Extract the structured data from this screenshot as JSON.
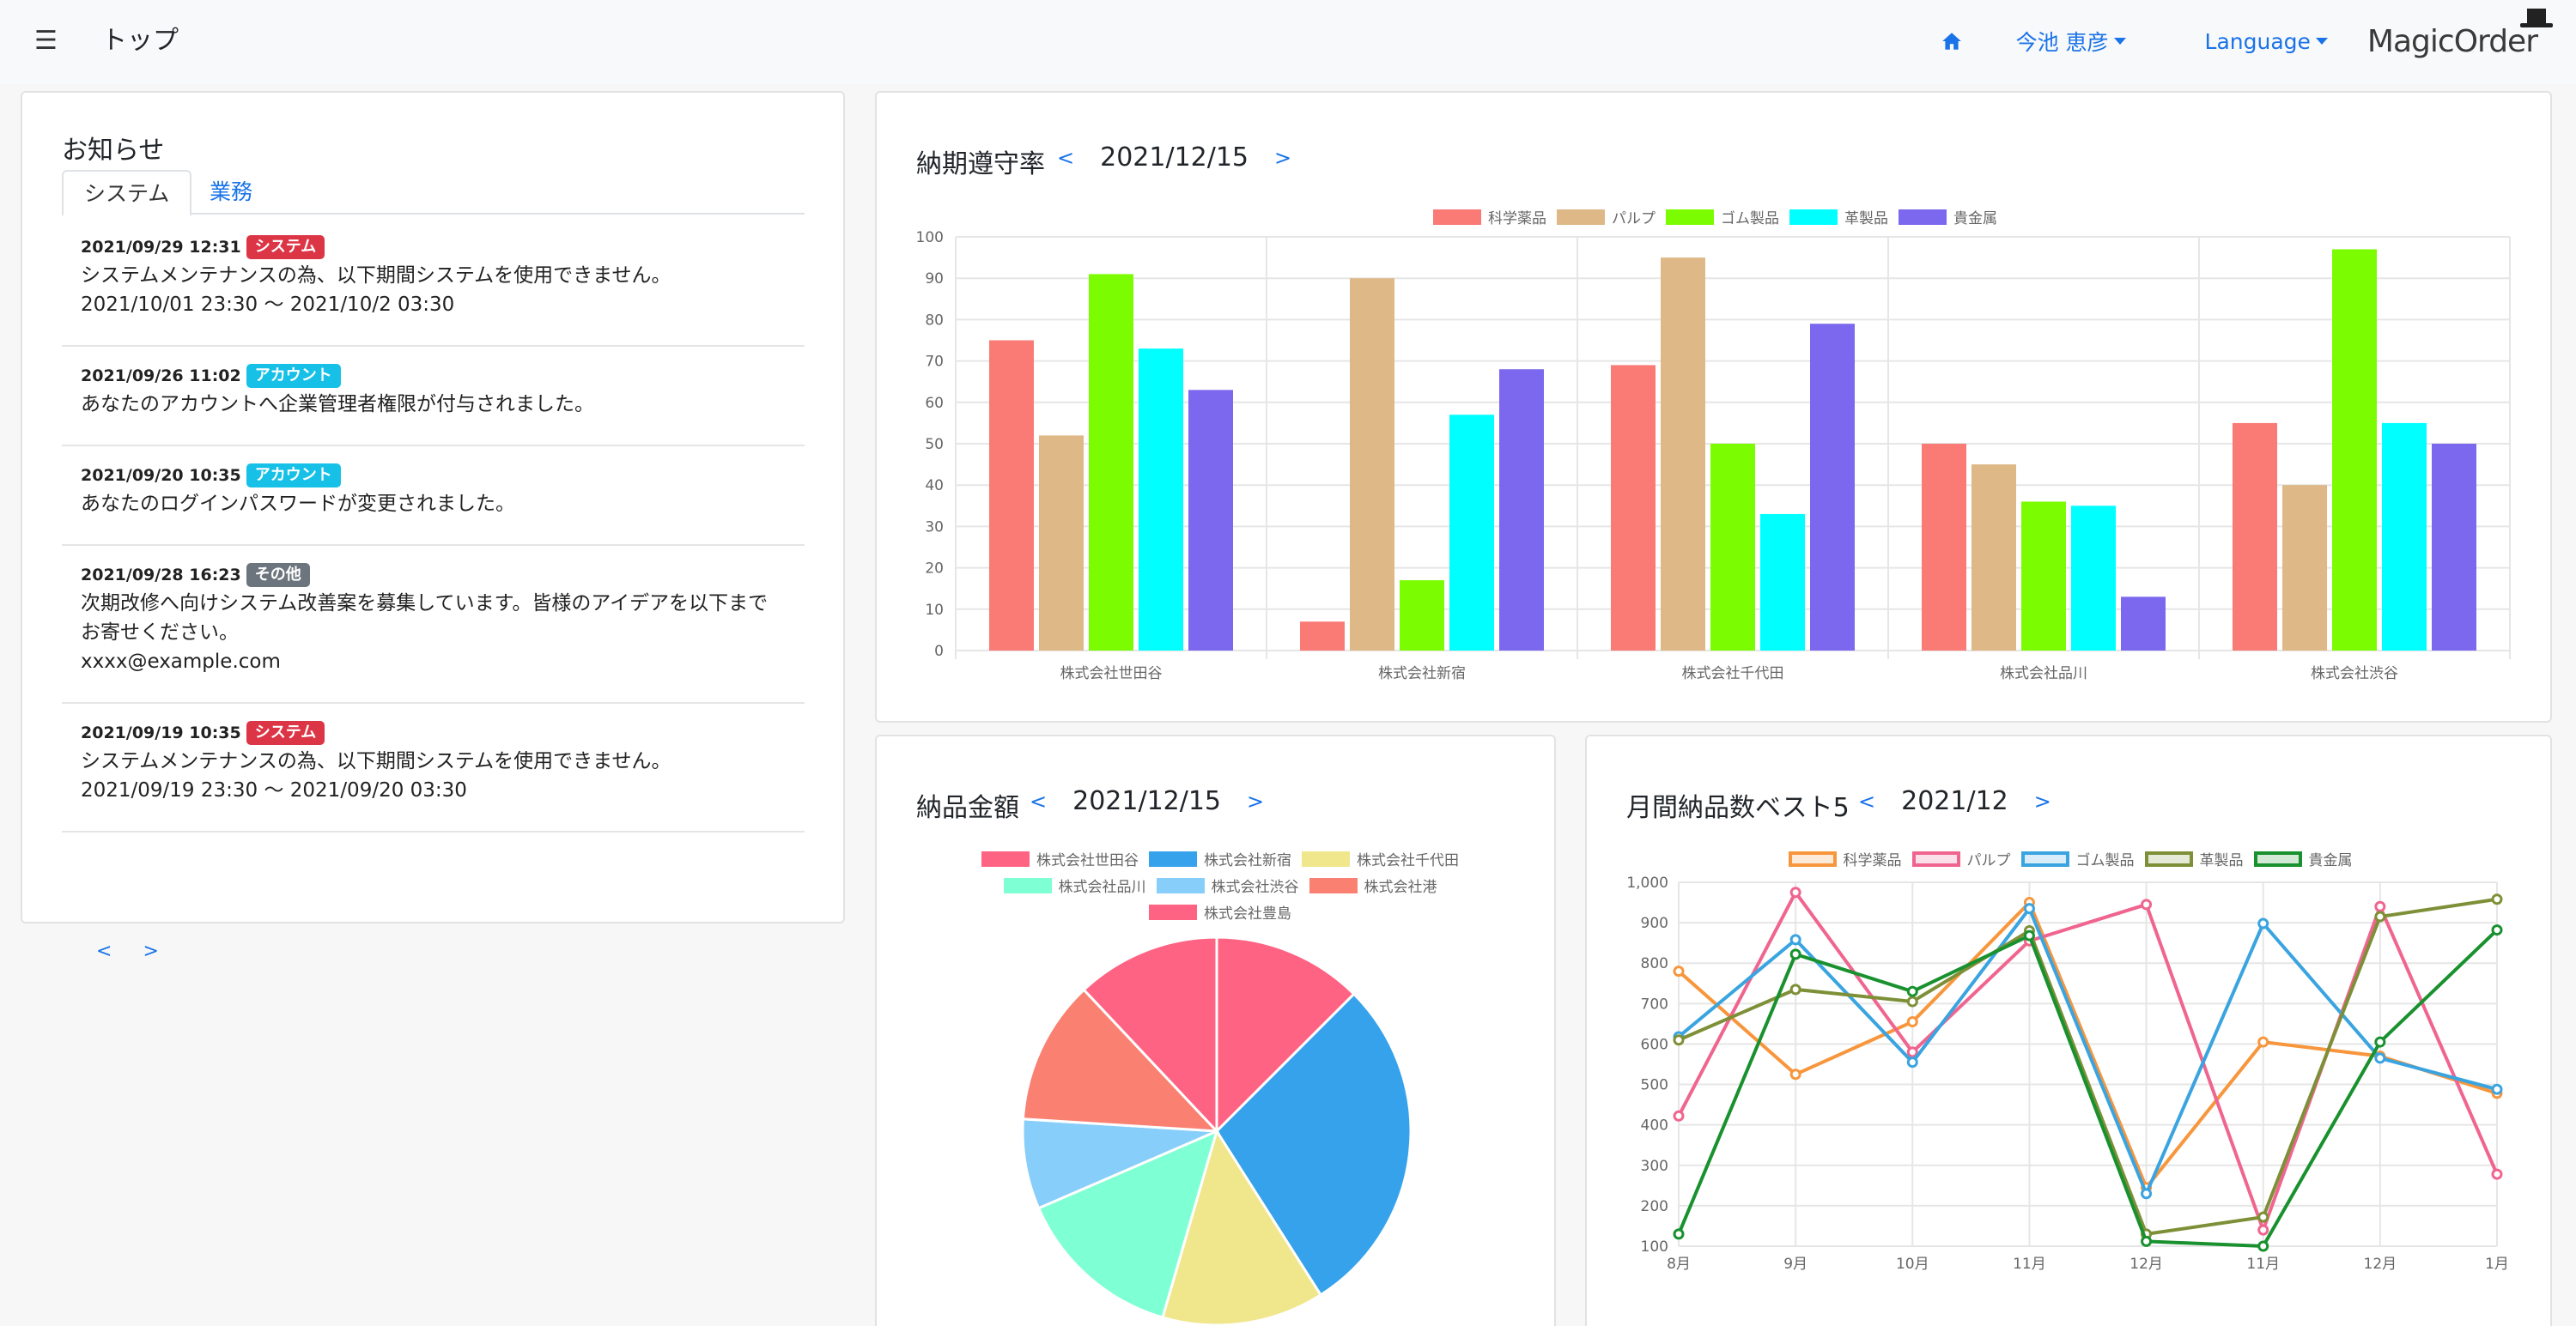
{
  "navbar": {
    "menu_icon": "☰",
    "title": "トップ",
    "home_icon": "home-icon",
    "user_name": "今池 恵彦",
    "language_label": "Language",
    "logo_text": "MagicOrder"
  },
  "notices": {
    "title": "お知らせ",
    "tabs": [
      {
        "label": "システム",
        "active": true
      },
      {
        "label": "業務",
        "active": false
      }
    ],
    "items": [
      {
        "datetime": "2021/09/29 12:31",
        "badge": "システム",
        "badge_type": "system",
        "text": "システムメンテナンスの為、以下期間システムを使用できません。\n2021/10/01 23:30 〜 2021/10/2 03:30"
      },
      {
        "datetime": "2021/09/26 11:02",
        "badge": "アカウント",
        "badge_type": "account",
        "text": "あなたのアカウントへ企業管理者権限が付与されました。"
      },
      {
        "datetime": "2021/09/20 10:35",
        "badge": "アカウント",
        "badge_type": "account",
        "text": "あなたのログインパスワードが変更されました。"
      },
      {
        "datetime": "2021/09/28 16:23",
        "badge": "その他",
        "badge_type": "other",
        "text": "次期改修へ向けシステム改善案を募集しています。皆様のアイデアを以下までお寄せください。\nxxxx@example.com"
      },
      {
        "datetime": "2021/09/19 10:35",
        "badge": "システム",
        "badge_type": "system",
        "text": "システムメンテナンスの為、以下期間システムを使用できません。\n2021/09/19 23:30 〜 2021/09/20 03:30"
      }
    ],
    "prev": "<",
    "next": ">"
  },
  "ontime": {
    "title": "納期遵守率",
    "date": "2021/12/15",
    "prev": "<",
    "next": ">"
  },
  "amount": {
    "title": "納品金額",
    "date": "2021/12/15",
    "prev": "<",
    "next": ">"
  },
  "monthly": {
    "title": "月間納品数ベスト5",
    "date": "2021/12",
    "prev": "<",
    "next": ">"
  },
  "colors": {
    "accent": "#1a73e8",
    "bar_series": [
      "#fa7a76",
      "#deb887",
      "#7cfc00",
      "#00ffff",
      "#7b68ee"
    ],
    "pie": [
      "#ff6384",
      "#36a2eb",
      "#f0e68c",
      "#7fffd4",
      "#87cefa",
      "#fa8072",
      "#ff6384"
    ],
    "line": [
      "#f7963c",
      "#f0658f",
      "#3aa4e0",
      "#7e9037",
      "#18912e"
    ]
  },
  "chart_data": [
    {
      "type": "bar",
      "categories": [
        "株式会社世田谷",
        "株式会社新宿",
        "株式会社千代田",
        "株式会社品川",
        "株式会社渋谷"
      ],
      "series": [
        {
          "name": "科学薬品",
          "values": [
            75,
            7,
            69,
            50,
            55
          ]
        },
        {
          "name": "パルプ",
          "values": [
            52,
            90,
            95,
            45,
            40
          ]
        },
        {
          "name": "ゴム製品",
          "values": [
            91,
            17,
            50,
            36,
            97
          ]
        },
        {
          "name": "革製品",
          "values": [
            73,
            57,
            33,
            35,
            55
          ]
        },
        {
          "name": "貴金属",
          "values": [
            63,
            68,
            79,
            13,
            50
          ]
        }
      ],
      "ylim": [
        0,
        100
      ],
      "yticks": [
        "0",
        "10",
        "20",
        "30",
        "40",
        "50",
        "60",
        "70",
        "80",
        "90",
        "100"
      ],
      "legend": "top",
      "grid": true
    },
    {
      "type": "pie",
      "labels": [
        "株式会社世田谷",
        "株式会社新宿",
        "株式会社千代田",
        "株式会社品川",
        "株式会社渋谷",
        "株式会社港",
        "株式会社豊島"
      ],
      "values": [
        12.5,
        28.5,
        13.5,
        14.0,
        7.5,
        12.0,
        12.0
      ],
      "legend": "top"
    },
    {
      "type": "line",
      "categories": [
        "8月",
        "9月",
        "10月",
        "11月",
        "12月",
        "11月",
        "12月",
        "1月"
      ],
      "series": [
        {
          "name": "科学薬品",
          "values": [
            780,
            525,
            655,
            950,
            245,
            605,
            570,
            478
          ]
        },
        {
          "name": "パルプ",
          "values": [
            422,
            975,
            580,
            855,
            945,
            140,
            940,
            278
          ]
        },
        {
          "name": "ゴム製品",
          "values": [
            618,
            858,
            555,
            935,
            230,
            898,
            565,
            488
          ]
        },
        {
          "name": "革製品",
          "values": [
            610,
            735,
            705,
            880,
            130,
            172,
            915,
            958
          ]
        },
        {
          "name": "貴金属",
          "values": [
            130,
            822,
            730,
            868,
            112,
            100,
            605,
            882
          ]
        }
      ],
      "ylim": [
        100,
        1000
      ],
      "yticks": [
        "100",
        "200",
        "300",
        "400",
        "500",
        "600",
        "700",
        "800",
        "900",
        "1,000"
      ],
      "legend": "top",
      "grid": true
    }
  ]
}
